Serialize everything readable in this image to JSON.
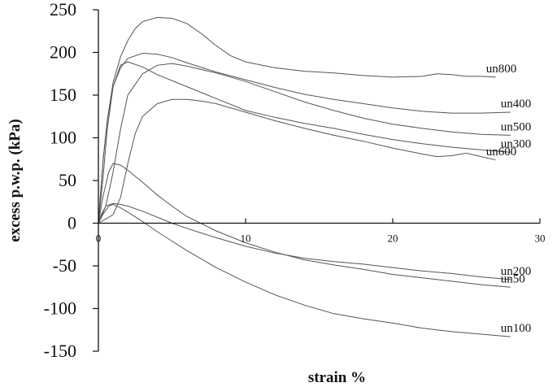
{
  "chart_data": {
    "type": "line",
    "title": "",
    "xlabel": "strain %",
    "ylabel": "excess  p.w.p. (kPa)",
    "xlim": [
      0,
      30
    ],
    "ylim": [
      -150,
      250
    ],
    "xticks": [
      0,
      10,
      20,
      30
    ],
    "yticks": [
      250,
      200,
      150,
      100,
      50,
      0,
      -50,
      -100,
      -150
    ],
    "grid": false,
    "legend": "none",
    "line_color": "#555555",
    "series": [
      {
        "name": "un800",
        "x": [
          0,
          0.3,
          0.6,
          1,
          1.5,
          2,
          2.5,
          3,
          4,
          5,
          6,
          7,
          8,
          9,
          10,
          12,
          14,
          16,
          18,
          20,
          22,
          23,
          24,
          25,
          26,
          27
        ],
        "y": [
          0,
          70,
          120,
          165,
          195,
          214,
          228,
          236,
          241,
          240,
          234,
          222,
          208,
          196,
          189,
          182,
          178,
          176,
          173,
          171,
          172,
          175,
          174,
          172,
          172,
          171
        ]
      },
      {
        "name": "un400",
        "x": [
          0,
          0.3,
          0.6,
          1,
          1.5,
          2,
          3,
          4,
          5,
          6,
          8,
          10,
          12,
          14,
          16,
          18,
          20,
          22,
          24,
          26,
          28
        ],
        "y": [
          0,
          70,
          120,
          160,
          182,
          193,
          199,
          198,
          194,
          188,
          177,
          168,
          159,
          151,
          145,
          140,
          135,
          131,
          129,
          129,
          130
        ]
      },
      {
        "name": "un500",
        "x": [
          0,
          0.5,
          1,
          1.5,
          2,
          3,
          4,
          5,
          6,
          8,
          10,
          12,
          14,
          16,
          18,
          20,
          22,
          24,
          26,
          28
        ],
        "y": [
          0,
          20,
          60,
          110,
          150,
          175,
          185,
          187,
          184,
          176,
          166,
          154,
          142,
          132,
          123,
          116,
          111,
          107,
          104,
          103
        ]
      },
      {
        "name": "un300",
        "x": [
          0,
          0.3,
          0.6,
          1,
          1.5,
          2,
          3,
          4,
          6,
          8,
          10,
          12,
          14,
          16,
          18,
          20,
          22,
          24,
          26,
          28
        ],
        "y": [
          0,
          50,
          110,
          160,
          185,
          189,
          183,
          174,
          160,
          146,
          132,
          124,
          117,
          111,
          104,
          98,
          93,
          89,
          86,
          83
        ]
      },
      {
        "name": "un600",
        "x": [
          0,
          1,
          1.5,
          2,
          2.5,
          3,
          4,
          5,
          6,
          7,
          8,
          10,
          12,
          14,
          16,
          18,
          20,
          22,
          23,
          24,
          25,
          26,
          27
        ],
        "y": [
          0,
          10,
          30,
          70,
          105,
          125,
          140,
          145,
          145,
          143,
          140,
          130,
          120,
          111,
          103,
          96,
          88,
          81,
          78,
          79,
          82,
          78,
          74
        ]
      },
      {
        "name": "un200",
        "x": [
          0,
          0.2,
          0.5,
          1,
          1.5,
          2,
          3,
          4,
          5,
          6,
          8,
          10,
          12,
          14,
          16,
          18,
          20,
          22,
          24,
          26,
          28
        ],
        "y": [
          0,
          10,
          20,
          23,
          22,
          20,
          14,
          7,
          0,
          -6,
          -17,
          -27,
          -35,
          -41,
          -45,
          -48,
          -52,
          -56,
          -59,
          -63,
          -66
        ]
      },
      {
        "name": "un50",
        "x": [
          0,
          0.3,
          0.7,
          1,
          1.5,
          2,
          3,
          4,
          5,
          6,
          8,
          10,
          12,
          14,
          16,
          18,
          20,
          22,
          24,
          26,
          28
        ],
        "y": [
          0,
          30,
          60,
          70,
          68,
          62,
          48,
          33,
          20,
          8,
          -9,
          -23,
          -34,
          -43,
          -49,
          -54,
          -60,
          -64,
          -68,
          -72,
          -75
        ]
      },
      {
        "name": "un100",
        "x": [
          0,
          0.3,
          0.7,
          1,
          1.5,
          2,
          3,
          4,
          5,
          6,
          8,
          10,
          12,
          14,
          16,
          18,
          20,
          22,
          24,
          26,
          28
        ],
        "y": [
          0,
          10,
          20,
          22,
          18,
          13,
          2,
          -10,
          -21,
          -32,
          -52,
          -69,
          -84,
          -96,
          -106,
          -112,
          -117,
          -123,
          -127,
          -130,
          -133
        ]
      }
    ]
  }
}
